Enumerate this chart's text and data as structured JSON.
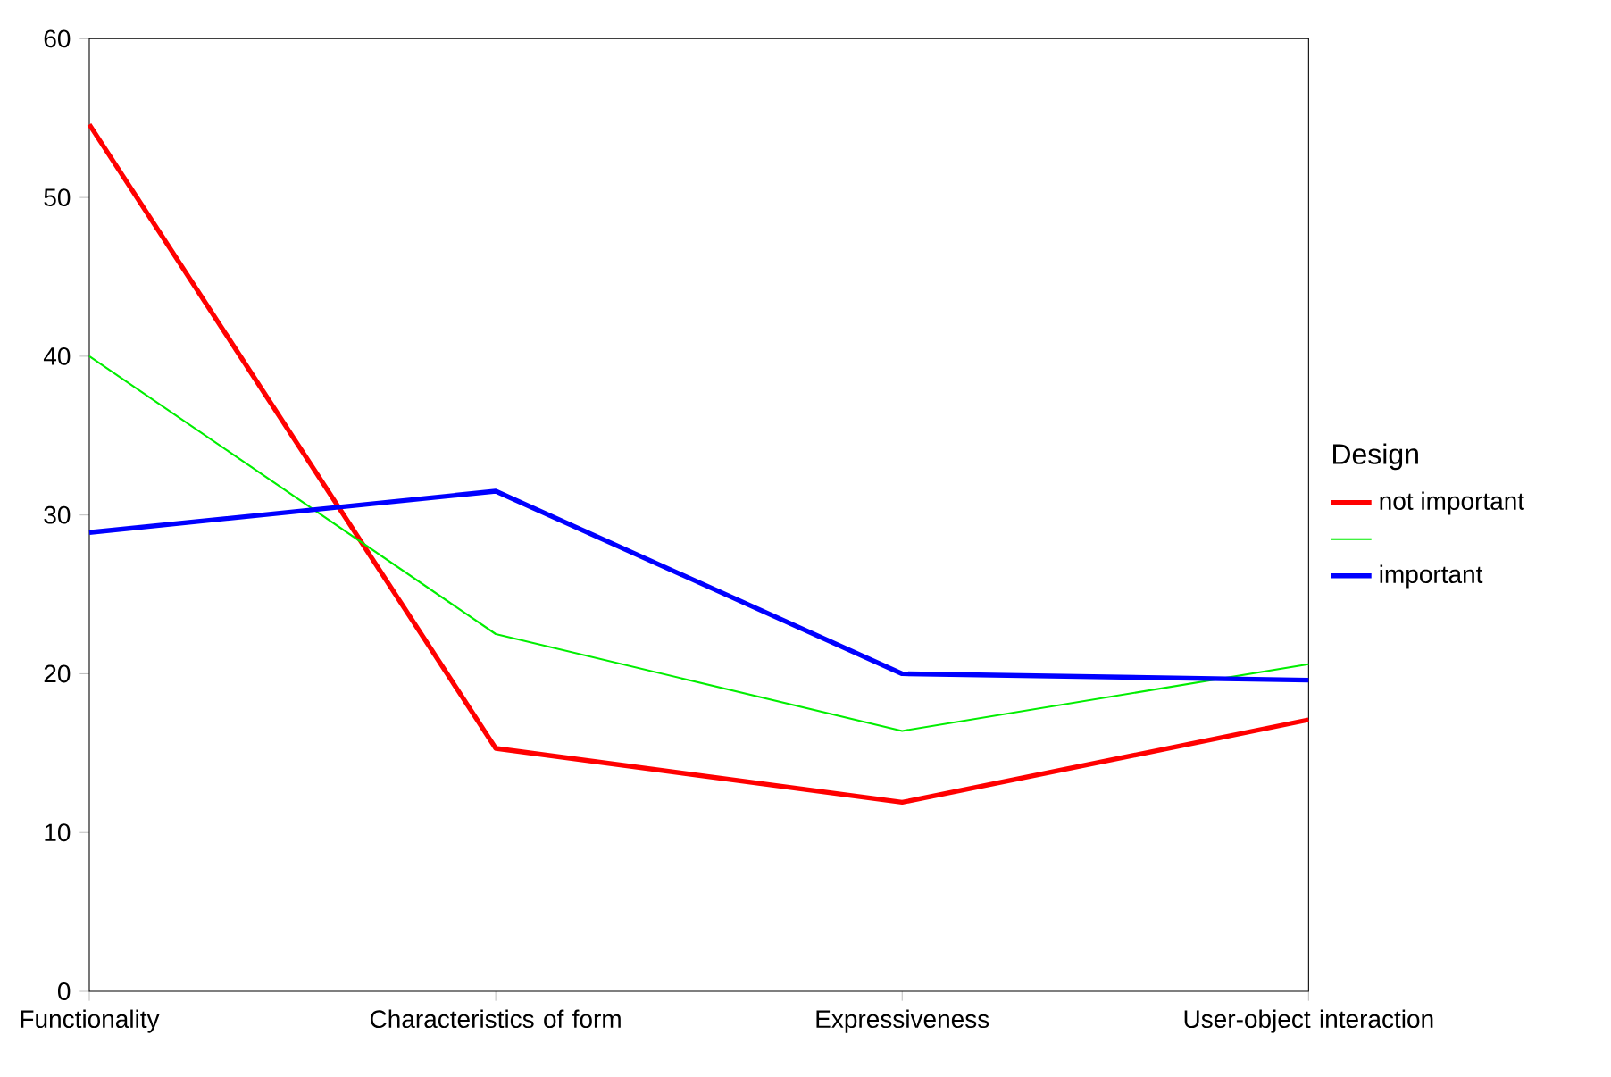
{
  "chart_data": {
    "type": "line",
    "categories": [
      "Functionality",
      "Characteristics of form",
      "Expressiveness",
      "User-object interaction"
    ],
    "ylim": [
      0,
      60
    ],
    "yticks": [
      0,
      10,
      20,
      30,
      40,
      50,
      60
    ],
    "legend_title": "Design",
    "legend": "right",
    "grid": false,
    "marker": "none",
    "line_style": "solid",
    "series": [
      {
        "name": "not important",
        "color": "#ff0000",
        "values": [
          54.6,
          15.3,
          11.9,
          17.1
        ]
      },
      {
        "color": "#00ee00",
        "values": [
          40.0,
          22.5,
          16.4,
          20.6
        ]
      },
      {
        "name": "important",
        "color": "#0000ff",
        "values": [
          28.9,
          31.5,
          20.0,
          19.6
        ]
      }
    ]
  }
}
